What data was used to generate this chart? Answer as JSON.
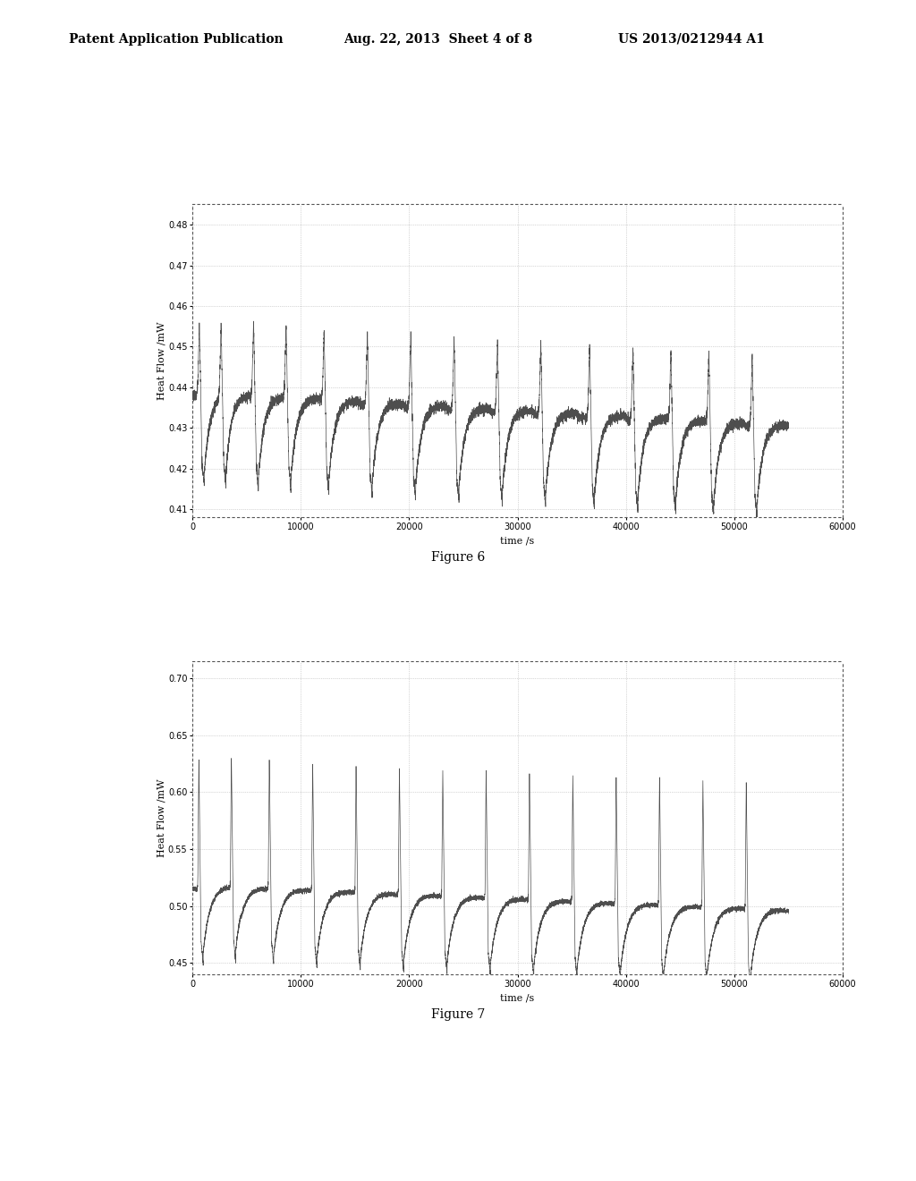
{
  "header_left": "Patent Application Publication",
  "header_mid": "Aug. 22, 2013  Sheet 4 of 8",
  "header_right": "US 2013/0212944 A1",
  "fig6_label": "Figure 6",
  "fig7_label": "Figure 7",
  "fig6_ylabel": "Heat Flow /mW",
  "fig6_xlabel": "time /s",
  "fig6_ylim": [
    0.408,
    0.485
  ],
  "fig6_yticks": [
    0.41,
    0.42,
    0.43,
    0.44,
    0.45,
    0.46,
    0.47,
    0.48
  ],
  "fig6_xlim": [
    0,
    60000
  ],
  "fig6_xticks": [
    0,
    10000,
    20000,
    30000,
    40000,
    50000,
    60000
  ],
  "fig7_ylabel": "Heat Flow /mW",
  "fig7_xlabel": "time /s",
  "fig7_ylim": [
    0.44,
    0.715
  ],
  "fig7_yticks": [
    0.45,
    0.5,
    0.55,
    0.6,
    0.65,
    0.7
  ],
  "fig7_xlim": [
    0,
    60000
  ],
  "fig7_xticks": [
    0,
    10000,
    20000,
    30000,
    40000,
    50000,
    60000
  ],
  "line_color": "#444444",
  "background": "#ffffff",
  "border_color": "#666666",
  "fig6_pulse_times": [
    500,
    2500,
    5500,
    8500,
    12000,
    16000,
    20000,
    24000,
    28000,
    32000,
    36500,
    40500,
    44000,
    47500,
    51500
  ],
  "fig7_pulse_times": [
    500,
    3500,
    7000,
    11000,
    15000,
    19000,
    23000,
    27000,
    31000,
    35000,
    39000,
    43000,
    47000,
    51000
  ]
}
